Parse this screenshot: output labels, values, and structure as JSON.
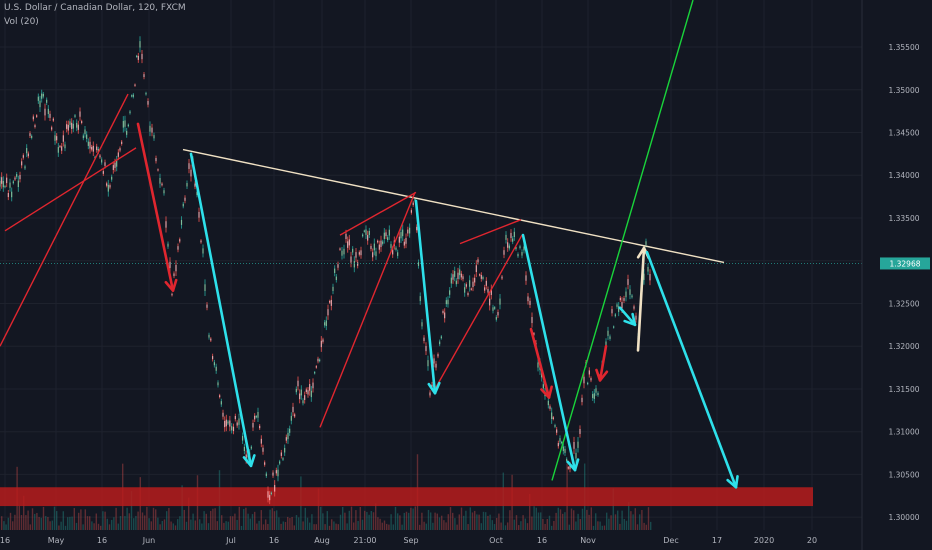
{
  "header": {
    "symbol": "U.S. Dollar / Canadian Dollar, 120, FXCM",
    "volume": "Vol (20)"
  },
  "chart_data": {
    "type": "line",
    "title": "U.S. Dollar / Canadian Dollar, 120, FXCM",
    "xlabel": "",
    "ylabel": "",
    "ylim": [
      1.2985,
      1.3605
    ],
    "y_ticks": [
      1.3,
      1.305,
      1.31,
      1.315,
      1.32,
      1.325,
      1.33,
      1.335,
      1.34,
      1.345,
      1.35,
      1.355
    ],
    "y_tick_labels": [
      "1.30000",
      "1.30500",
      "1.31000",
      "1.31500",
      "1.32000",
      "1.32500",
      "1.33000",
      "1.33500",
      "1.34000",
      "1.34500",
      "1.35000",
      "1.35500"
    ],
    "x_ticks": [
      {
        "label": "16",
        "i": 0.5
      },
      {
        "label": "May",
        "i": 5.6
      },
      {
        "label": "16",
        "i": 10.2
      },
      {
        "label": "Jun",
        "i": 14.9
      },
      {
        "label": "Jul",
        "i": 23.1
      },
      {
        "label": "16",
        "i": 27.4
      },
      {
        "label": "Aug",
        "i": 32.2
      },
      {
        "label": "21:00",
        "i": 36.5
      },
      {
        "label": "Sep",
        "i": 41.1
      },
      {
        "label": "Oct",
        "i": 49.6
      },
      {
        "label": "16",
        "i": 54.2
      },
      {
        "label": "Nov",
        "i": 58.8
      },
      {
        "label": "Dec",
        "i": 67.1
      },
      {
        "label": "17",
        "i": 71.7
      },
      {
        "label": "2020",
        "i": 76.4
      },
      {
        "label": "20",
        "i": 81.2
      }
    ],
    "x_range": [
      0,
      93.2
    ],
    "last_price": {
      "label": "1.32968",
      "value": 1.32968,
      "color": "#26a69a"
    },
    "series": [
      {
        "values": [
          {
            "i": 0,
            "v": 1.3395
          },
          {
            "i": 1,
            "v": 1.338
          },
          {
            "i": 2,
            "v": 1.34
          },
          {
            "i": 3,
            "v": 1.344
          },
          {
            "i": 4,
            "v": 1.349
          },
          {
            "i": 5,
            "v": 1.347
          },
          {
            "i": 6,
            "v": 1.343
          },
          {
            "i": 7,
            "v": 1.3455
          },
          {
            "i": 8,
            "v": 1.3465
          },
          {
            "i": 9,
            "v": 1.343
          },
          {
            "i": 10,
            "v": 1.342
          },
          {
            "i": 11,
            "v": 1.339
          },
          {
            "i": 12,
            "v": 1.344
          },
          {
            "i": 13,
            "v": 1.347
          },
          {
            "i": 14,
            "v": 1.356
          },
          {
            "i": 14.8,
            "v": 1.348
          },
          {
            "i": 15.6,
            "v": 1.342
          },
          {
            "i": 16.4,
            "v": 1.337
          },
          {
            "i": 17.2,
            "v": 1.327
          },
          {
            "i": 17.8,
            "v": 1.331
          },
          {
            "i": 18.5,
            "v": 1.338
          },
          {
            "i": 19.3,
            "v": 1.342
          },
          {
            "i": 20.1,
            "v": 1.333
          },
          {
            "i": 20.9,
            "v": 1.322
          },
          {
            "i": 21.8,
            "v": 1.315
          },
          {
            "i": 22.8,
            "v": 1.31
          },
          {
            "i": 23.9,
            "v": 1.312
          },
          {
            "i": 24.8,
            "v": 1.307
          },
          {
            "i": 25.8,
            "v": 1.313
          },
          {
            "i": 26.8,
            "v": 1.303
          },
          {
            "i": 27.8,
            "v": 1.305
          },
          {
            "i": 28.8,
            "v": 1.309
          },
          {
            "i": 29.8,
            "v": 1.315
          },
          {
            "i": 30.8,
            "v": 1.314
          },
          {
            "i": 31.8,
            "v": 1.318
          },
          {
            "i": 32.8,
            "v": 1.324
          },
          {
            "i": 33.8,
            "v": 1.33
          },
          {
            "i": 34.6,
            "v": 1.332
          },
          {
            "i": 35.6,
            "v": 1.33
          },
          {
            "i": 36.6,
            "v": 1.333
          },
          {
            "i": 37.6,
            "v": 1.331
          },
          {
            "i": 38.6,
            "v": 1.334
          },
          {
            "i": 39.6,
            "v": 1.331
          },
          {
            "i": 40.6,
            "v": 1.333
          },
          {
            "i": 41.5,
            "v": 1.337
          },
          {
            "i": 42.2,
            "v": 1.323
          },
          {
            "i": 43.0,
            "v": 1.315
          },
          {
            "i": 43.8,
            "v": 1.32
          },
          {
            "i": 44.8,
            "v": 1.326
          },
          {
            "i": 45.8,
            "v": 1.329
          },
          {
            "i": 46.8,
            "v": 1.327
          },
          {
            "i": 47.8,
            "v": 1.329
          },
          {
            "i": 48.8,
            "v": 1.326
          },
          {
            "i": 49.8,
            "v": 1.324
          },
          {
            "i": 50.6,
            "v": 1.333
          },
          {
            "i": 51.6,
            "v": 1.332
          },
          {
            "i": 52.4,
            "v": 1.331
          },
          {
            "i": 53.2,
            "v": 1.322
          },
          {
            "i": 54.0,
            "v": 1.317
          },
          {
            "i": 55.0,
            "v": 1.313
          },
          {
            "i": 56.0,
            "v": 1.308
          },
          {
            "i": 57.0,
            "v": 1.306
          },
          {
            "i": 57.8,
            "v": 1.309
          },
          {
            "i": 58.6,
            "v": 1.317
          },
          {
            "i": 59.6,
            "v": 1.314
          },
          {
            "i": 60.4,
            "v": 1.319
          },
          {
            "i": 61.2,
            "v": 1.323
          },
          {
            "i": 62.2,
            "v": 1.325
          },
          {
            "i": 63.0,
            "v": 1.327
          },
          {
            "i": 63.8,
            "v": 1.321
          },
          {
            "i": 64.6,
            "v": 1.331
          },
          {
            "i": 65.2,
            "v": 1.327
          }
        ]
      }
    ],
    "drawings": [
      {
        "name": "trendline-red-top-left",
        "color": "#e0262f",
        "points": [
          [
            0,
            1.32
          ],
          [
            12.8,
            1.3495
          ]
        ]
      },
      {
        "name": "trendline-red-left",
        "color": "#e0262f",
        "points": [
          [
            0.5,
            1.3335
          ],
          [
            13.6,
            1.3432
          ]
        ]
      },
      {
        "name": "resistance-line",
        "color": "#f0e1c4",
        "points": [
          [
            18.3,
            1.343
          ],
          [
            72.4,
            1.3298
          ]
        ]
      },
      {
        "name": "trendline-red-aug",
        "color": "#e0262f",
        "points": [
          [
            32.0,
            1.3105
          ],
          [
            41.5,
            1.338
          ]
        ]
      },
      {
        "name": "trendline-red-sep",
        "color": "#e0262f",
        "points": [
          [
            34.0,
            1.333
          ],
          [
            41.6,
            1.338
          ]
        ]
      },
      {
        "name": "trendline-red-sep-oct",
        "color": "#e0262f",
        "points": [
          [
            43.5,
            1.315
          ],
          [
            52.2,
            1.333
          ]
        ]
      },
      {
        "name": "trendline-red-oct",
        "color": "#e0262f",
        "points": [
          [
            46.0,
            1.332
          ],
          [
            52.1,
            1.3348
          ]
        ]
      },
      {
        "name": "trendline-green",
        "color": "#19d43b",
        "points": [
          [
            55.2,
            1.3043
          ],
          [
            69.3,
            1.3605
          ]
        ]
      }
    ],
    "arrows": [
      {
        "name": "arrow-red-jun",
        "color": "#e0262f",
        "points": [
          [
            13.8,
            1.346
          ],
          [
            17.3,
            1.3265
          ]
        ]
      },
      {
        "name": "arrow-cyan-jun",
        "color": "#2ee0ea",
        "points": [
          [
            19.1,
            1.3425
          ],
          [
            25.1,
            1.306
          ]
        ]
      },
      {
        "name": "arrow-cyan-sep",
        "color": "#2ee0ea",
        "points": [
          [
            41.6,
            1.337
          ],
          [
            43.5,
            1.3145
          ]
        ]
      },
      {
        "name": "arrow-red-oct",
        "color": "#e0262f",
        "points": [
          [
            53.1,
            1.322
          ],
          [
            54.9,
            1.314
          ]
        ]
      },
      {
        "name": "arrow-cyan-oct",
        "color": "#2ee0ea",
        "points": [
          [
            52.3,
            1.333
          ],
          [
            57.5,
            1.3055
          ]
        ]
      },
      {
        "name": "arrow-red-nov",
        "color": "#e0262f",
        "points": [
          [
            60.6,
            1.32
          ],
          [
            60.0,
            1.316
          ]
        ]
      },
      {
        "name": "arrow-cyan-nov",
        "color": "#2ee0ea",
        "points": [
          [
            62.0,
            1.3245
          ],
          [
            63.5,
            1.3225
          ]
        ]
      },
      {
        "name": "arrow-beige-nov",
        "color": "#f0e1c4",
        "points": [
          [
            63.8,
            1.3195
          ],
          [
            64.4,
            1.3315
          ]
        ]
      },
      {
        "name": "arrow-cyan-projection",
        "color": "#2ee0ea",
        "points": [
          [
            64.7,
            1.331
          ],
          [
            73.6,
            1.3035
          ]
        ]
      }
    ],
    "support_zone": {
      "color": "#b71c1c",
      "x": [
        0,
        81.3
      ],
      "y": [
        1.3013,
        1.3035
      ]
    }
  }
}
